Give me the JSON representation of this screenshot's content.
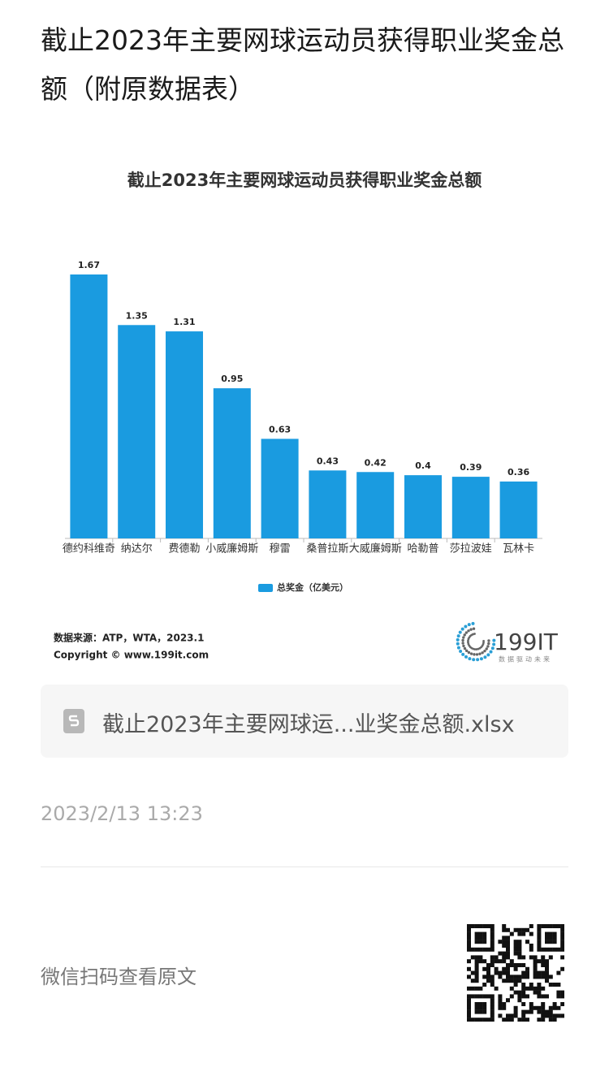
{
  "header": {
    "title": "截止2023年主要网球运动员获得职业奖金总额（附原数据表）"
  },
  "chart_data": {
    "type": "bar",
    "title": "截止2023年主要网球运动员获得职业奖金总额",
    "categories": [
      "德约科维奇",
      "纳达尔",
      "费德勒",
      "小威廉姆斯",
      "穆雷",
      "桑普拉斯",
      "大威廉姆斯",
      "哈勒普",
      "莎拉波娃",
      "瓦林卡"
    ],
    "series": [
      {
        "name": "总奖金（亿美元）",
        "color": "#1a9be0",
        "values": [
          1.67,
          1.35,
          1.31,
          0.95,
          0.63,
          0.43,
          0.42,
          0.4,
          0.39,
          0.36
        ]
      }
    ],
    "legend": "bottom"
  },
  "source": {
    "line1": "数据来源：ATP，WTA，2023.1",
    "line2": "Copyright © www.199it.com"
  },
  "logo": {
    "text": "199IT",
    "tagline": "数据驱动未来"
  },
  "file": {
    "name": "截止2023年主要网球运...业奖金总额.xlsx"
  },
  "date": "2023/2/13 13:23",
  "footer": {
    "text": "微信扫码查看原文"
  }
}
